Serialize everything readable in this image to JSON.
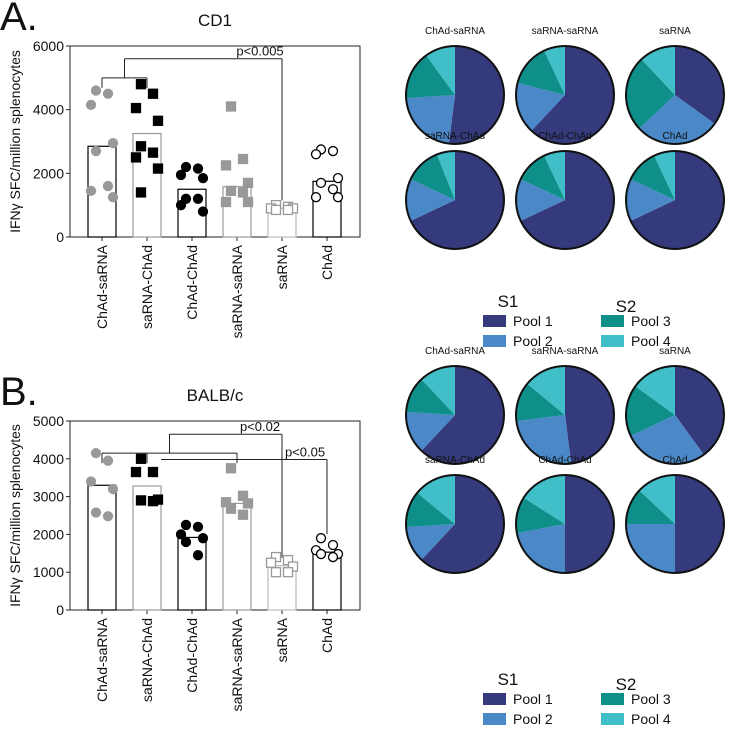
{
  "colors": {
    "pool1": "#343a7c",
    "pool2": "#4a88c8",
    "pool3": "#0f8f8a",
    "pool4": "#40bfc8"
  },
  "legend": {
    "s1": "S1",
    "s2": "S2",
    "pools": [
      "Pool 1",
      "Pool 2",
      "Pool 3",
      "Pool 4"
    ]
  },
  "chart_data": [
    {
      "type": "bar",
      "panel": "A.",
      "title": "CD1",
      "ylabel": "IFNγ SFC/million splenocytes",
      "ylim": [
        0,
        6000
      ],
      "yticks": [
        0,
        2000,
        4000,
        6000
      ],
      "categories": [
        "ChAd-saRNA",
        "saRNA-ChAd",
        "ChAd-ChAd",
        "saRNA-saRNA",
        "saRNA",
        "ChAd"
      ],
      "bars": [
        2850,
        3250,
        1500,
        1580,
        900,
        1750
      ],
      "points": [
        [
          4600,
          4500,
          4150,
          2950,
          2700,
          1600,
          1450,
          1250
        ],
        [
          4800,
          4500,
          4050,
          3650,
          2850,
          2650,
          2500,
          2150,
          1400
        ],
        [
          2200,
          2150,
          1950,
          1850,
          1200,
          1200,
          1000,
          800
        ],
        [
          4100,
          2450,
          2250,
          1700,
          1450,
          1400,
          1100,
          1100
        ],
        [
          1000,
          950,
          900,
          900,
          850,
          850
        ],
        [
          2750,
          2700,
          2600,
          1850,
          1700,
          1500,
          1250,
          1250
        ]
      ],
      "annotations": [
        {
          "text": "p<0.005",
          "from": [
            0,
            1
          ],
          "to": 4,
          "level": 5600
        }
      ]
    },
    {
      "type": "bar",
      "panel": "B.",
      "title": "BALB/c",
      "ylabel": "IFNγ SFC/million splenocytes",
      "ylim": [
        0,
        5000
      ],
      "yticks": [
        0,
        1000,
        2000,
        3000,
        4000,
        5000
      ],
      "categories": [
        "ChAd-saRNA",
        "saRNA-ChAd",
        "ChAd-ChAd",
        "saRNA-saRNA",
        "saRNA",
        "ChAd"
      ],
      "bars": [
        3300,
        3280,
        1920,
        2820,
        1170,
        1530
      ],
      "points": [
        [
          4150,
          3950,
          3400,
          3200,
          2580,
          2480
        ],
        [
          4000,
          3650,
          3650,
          2920,
          2900,
          2880
        ],
        [
          2250,
          2200,
          2000,
          1900,
          1800,
          1450
        ],
        [
          3750,
          3020,
          2850,
          2820,
          2680,
          2520
        ],
        [
          1400,
          1320,
          1250,
          1150,
          1000,
          1000
        ],
        [
          1900,
          1720,
          1580,
          1480,
          1480,
          1400
        ]
      ],
      "annotations": [
        {
          "text": "p<0.02",
          "from": [
            0,
            1,
            3
          ],
          "to": 4,
          "level": 4650
        },
        {
          "text": "p<0.05",
          "from": [
            1
          ],
          "to": 5,
          "level": 3980
        }
      ]
    },
    {
      "type": "pie",
      "panel": "A.",
      "series": [
        "Pool 1",
        "Pool 2",
        "Pool 3",
        "Pool 4"
      ],
      "pies": [
        {
          "label": "ChAd-saRNA",
          "values": [
            0.52,
            0.22,
            0.16,
            0.1
          ]
        },
        {
          "label": "saRNA-saRNA",
          "values": [
            0.62,
            0.17,
            0.14,
            0.07
          ]
        },
        {
          "label": "saRNA",
          "values": [
            0.35,
            0.28,
            0.25,
            0.12
          ]
        },
        {
          "label": "saRNA-ChAd",
          "values": [
            0.68,
            0.14,
            0.12,
            0.06
          ]
        },
        {
          "label": "ChAd-ChAd",
          "values": [
            0.68,
            0.14,
            0.11,
            0.07
          ]
        },
        {
          "label": "ChAd",
          "values": [
            0.68,
            0.14,
            0.11,
            0.07
          ]
        }
      ]
    },
    {
      "type": "pie",
      "panel": "B.",
      "series": [
        "Pool 1",
        "Pool 2",
        "Pool 3",
        "Pool 4"
      ],
      "pies": [
        {
          "label": "ChAd-saRNA",
          "values": [
            0.62,
            0.14,
            0.12,
            0.12
          ]
        },
        {
          "label": "saRNA-saRNA",
          "values": [
            0.48,
            0.25,
            0.13,
            0.14
          ]
        },
        {
          "label": "saRNA",
          "values": [
            0.4,
            0.28,
            0.17,
            0.15
          ]
        },
        {
          "label": "saRNA-ChAd",
          "values": [
            0.62,
            0.12,
            0.12,
            0.14
          ]
        },
        {
          "label": "ChAd-ChAd",
          "values": [
            0.5,
            0.22,
            0.12,
            0.16
          ]
        },
        {
          "label": "ChAd",
          "values": [
            0.5,
            0.25,
            0.12,
            0.13
          ]
        }
      ]
    }
  ]
}
